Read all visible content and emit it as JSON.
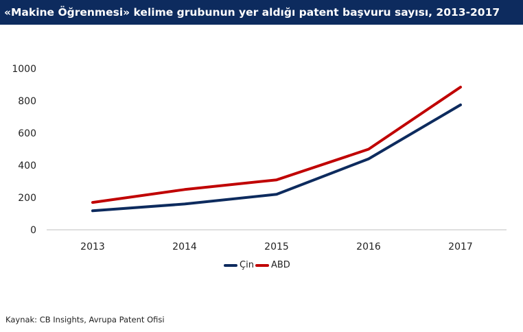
{
  "header": {
    "title": "«Makine Öğrenmesi» kelime grubunun yer aldığı patent başvuru sayısı, 2013-2017"
  },
  "footer": {
    "source": "Kaynak: CB Insights, Avrupa Patent Ofisi"
  },
  "colors": {
    "header_bg": "#0d2b5e",
    "series_cin": "#0d2b5e",
    "series_abd": "#c00000",
    "axis": "#bfbfbf",
    "tick_text": "#222222"
  },
  "chart_data": {
    "type": "line",
    "title": "«Makine Öğrenmesi» kelime grubunun yer aldığı patent başvuru sayısı, 2013-2017",
    "xlabel": "",
    "ylabel": "",
    "x": [
      "2013",
      "2014",
      "2015",
      "2016",
      "2017"
    ],
    "ylim": [
      0,
      1000
    ],
    "yticks": [
      0,
      200,
      400,
      600,
      800,
      1000
    ],
    "grid": false,
    "legend": "bottom",
    "series": [
      {
        "name": "Çin",
        "color": "#0d2b5e",
        "values": [
          118,
          160,
          220,
          440,
          775
        ]
      },
      {
        "name": "ABD",
        "color": "#c00000",
        "values": [
          170,
          250,
          310,
          500,
          885
        ]
      }
    ]
  }
}
